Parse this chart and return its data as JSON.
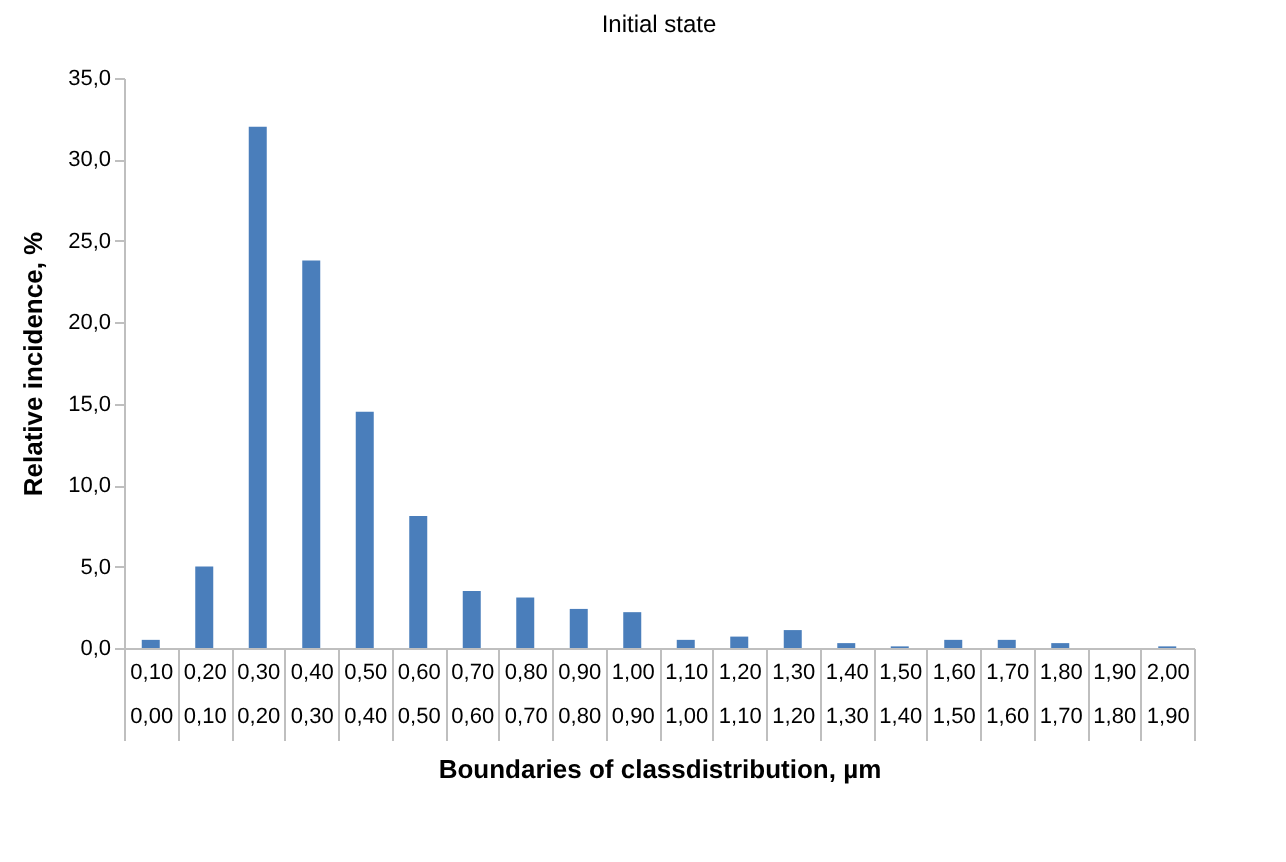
{
  "chart_data": {
    "type": "bar",
    "title": "Initial  state",
    "xlabel": "Boundaries of classdistribution,  µm",
    "ylabel": "Relative  incidence, %",
    "categories": [
      "0,10\n0,00",
      "0,20\n0,10",
      "0,30\n0,20",
      "0,40\n0,30",
      "0,50\n0,40",
      "0,60\n0,50",
      "0,70\n0,60",
      "0,80\n0,70",
      "0,90\n0,80",
      "1,00\n0,90",
      "1,10\n1,00",
      "1,20\n1,10",
      "1,30\n1,20",
      "1,40\n1,30",
      "1,50\n1,40",
      "1,60\n1,50",
      "1,70\n1,60",
      "1,80\n1,70",
      "1,90\n1,80",
      "2,00\n1,90"
    ],
    "series": [
      {
        "color": "#4a7ebb",
        "values": [
          0.5,
          5.0,
          32.0,
          23.8,
          14.5,
          8.1,
          3.5,
          3.1,
          2.4,
          2.2,
          0.5,
          0.7,
          1.1,
          0.3,
          0.1,
          0.5,
          0.5,
          0.3,
          0,
          0.1
        ]
      }
    ],
    "ylim": [
      0,
      35
    ],
    "yticks": [
      {
        "value": 0,
        "label": "0,0"
      },
      {
        "value": 5,
        "label": "5,0"
      },
      {
        "value": 10,
        "label": "10,0"
      },
      {
        "value": 15,
        "label": "15,0"
      },
      {
        "value": 20,
        "label": "20,0"
      },
      {
        "value": 25,
        "label": "25,0"
      },
      {
        "value": 30,
        "label": "30,0"
      },
      {
        "value": 35,
        "label": "35,0"
      }
    ],
    "grid": false
  }
}
